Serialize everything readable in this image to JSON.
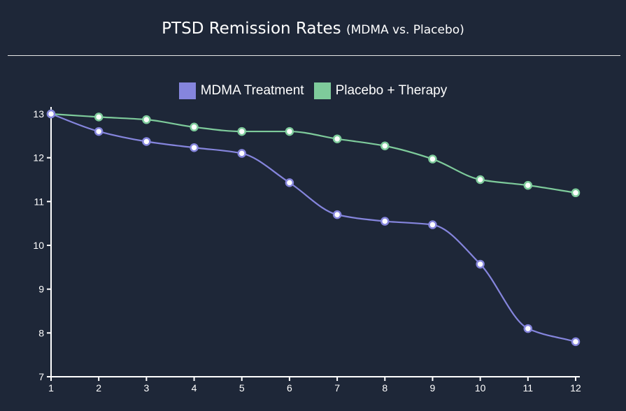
{
  "title": "PTSD Remission Rates",
  "subtitle": "(MDMA vs. Placebo)",
  "colors": {
    "background": "#1e2738",
    "mdma": "#8585dd",
    "placebo": "#7ecb9b",
    "axis": "#ffffff"
  },
  "legend": [
    {
      "label": "MDMA Treatment",
      "color": "#8585dd"
    },
    {
      "label": "Placebo + Therapy",
      "color": "#7ecb9b"
    }
  ],
  "chart_data": {
    "type": "line",
    "title": "PTSD Remission Rates (MDMA vs. Placebo)",
    "xlabel": "",
    "ylabel": "",
    "x": [
      1,
      2,
      3,
      4,
      5,
      6,
      7,
      8,
      9,
      10,
      11,
      12
    ],
    "ylim": [
      7,
      13
    ],
    "yticks": [
      7,
      8,
      9,
      10,
      11,
      12,
      13
    ],
    "grid": false,
    "legend_position": "top-center",
    "series": [
      {
        "name": "MDMA Treatment",
        "color": "#8585dd",
        "values": [
          13.0,
          12.6,
          12.37,
          12.23,
          12.1,
          11.43,
          10.7,
          10.55,
          10.47,
          9.57,
          8.1,
          7.8
        ]
      },
      {
        "name": "Placebo + Therapy",
        "color": "#7ecb9b",
        "values": [
          13.0,
          12.93,
          12.87,
          12.7,
          12.6,
          12.6,
          12.43,
          12.27,
          11.97,
          11.5,
          11.37,
          11.2
        ]
      }
    ]
  }
}
